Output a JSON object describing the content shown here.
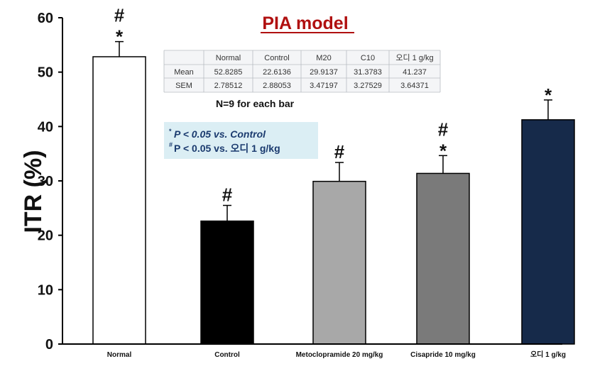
{
  "chart_data": {
    "type": "bar",
    "title": "PIA model",
    "ylabel": "ITR (%)",
    "xlabel": "",
    "ylim": [
      0,
      60
    ],
    "yticks": [
      0,
      10,
      20,
      30,
      40,
      50,
      60
    ],
    "categories": [
      "Normal",
      "Control",
      "Metoclopramide 20 mg/kg",
      "Cisapride 10 mg/kg",
      "오디 1 g/kg"
    ],
    "values": [
      52.8285,
      22.6136,
      29.9137,
      31.3783,
      41.237
    ],
    "errors": [
      2.78512,
      2.88053,
      3.47197,
      3.27529,
      3.64371
    ],
    "bar_colors": [
      "#ffffff",
      "#000000",
      "#a8a8a8",
      "#7a7a7a",
      "#162a4a"
    ],
    "significance": [
      [
        "#",
        "*"
      ],
      [
        "#"
      ],
      [
        "#"
      ],
      [
        "#",
        "*"
      ],
      [
        "*"
      ]
    ],
    "grid": false,
    "stats_table": {
      "headers": [
        "",
        "Normal",
        "Control",
        "M20",
        "C10",
        "오디 1 g/kg"
      ],
      "rows": [
        [
          "Mean",
          "52.8285",
          "22.6136",
          "29.9137",
          "31.3783",
          "41.237"
        ],
        [
          "SEM",
          "2.78512",
          "2.88053",
          "3.47197",
          "3.27529",
          "3.64371"
        ]
      ]
    },
    "n_note": "N=9 for each bar",
    "legend": {
      "line1": {
        "sup": "*",
        "text": "P < 0.05 vs. Control"
      },
      "line2": {
        "sup": "#",
        "text": "P < 0.05 vs. 오디 1 g/kg"
      },
      "placement": "upper-left",
      "background": "#dbeef4"
    }
  }
}
